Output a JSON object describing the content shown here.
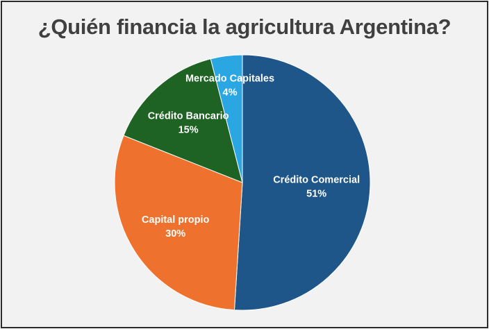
{
  "chart_data": {
    "type": "pie",
    "title": "¿Quién financia la agricultura Argentina?",
    "slices": [
      {
        "name": "Crédito Comercial",
        "value": 51,
        "label": "51%",
        "color": "#1f5689"
      },
      {
        "name": "Capital propio",
        "value": 30,
        "label": "30%",
        "color": "#ee722d"
      },
      {
        "name": "Crédito Bancario",
        "value": 15,
        "label": "15%",
        "color": "#1e6324"
      },
      {
        "name": "Mercado Capitales",
        "value": 4,
        "label": "4%",
        "color": "#2aa7e3"
      }
    ],
    "start_angle": "12 o'clock",
    "direction": "clockwise",
    "legend": "none",
    "data_labels": "inside"
  }
}
